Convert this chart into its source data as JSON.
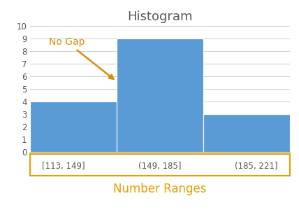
{
  "title": "Histogram",
  "title_color": "#595959",
  "title_fontsize": 13,
  "xlabel": "Number Ranges",
  "xlabel_color": "#E8A000",
  "xlabel_fontsize": 12,
  "bar_labels": [
    "[113, 149]",
    "(149, 185]",
    "(185, 221]"
  ],
  "bar_values": [
    4,
    9,
    3
  ],
  "bar_color": "#5B9BD5",
  "bar_edgecolor": "white",
  "ylim": [
    0,
    10
  ],
  "yticks": [
    0,
    1,
    2,
    3,
    4,
    5,
    6,
    7,
    8,
    9,
    10
  ],
  "annotation_text": "No Gap",
  "annotation_color": "#D4900A",
  "annotation_fontsize": 10,
  "annotation_arrow_color": "#D4900A",
  "tick_label_box_color": "#E8A000",
  "background_color": "#FFFFFF",
  "grid_color": "#CCCCCC"
}
